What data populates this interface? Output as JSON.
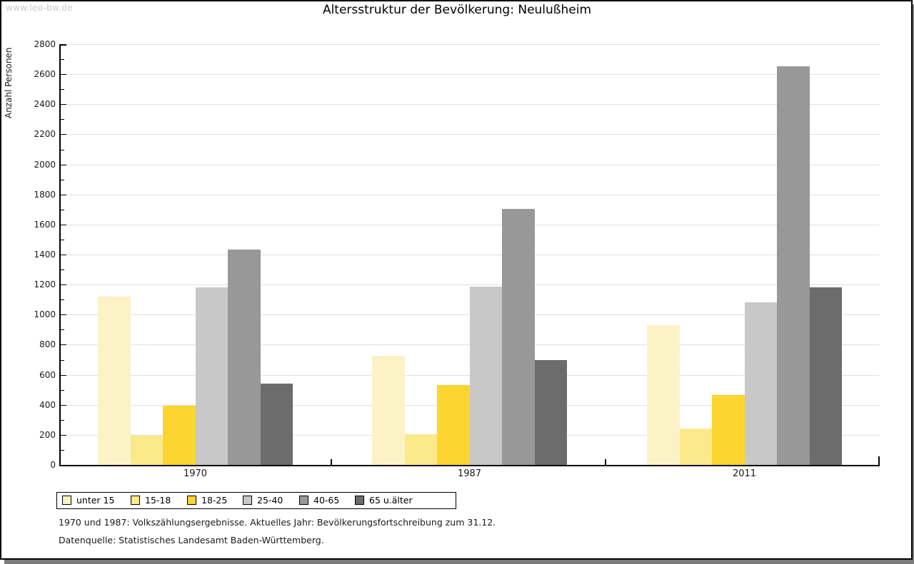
{
  "watermark": "www.leo-bw.de",
  "title": "Altersstruktur der Bevölkerung: Neulußheim",
  "y_axis_title": "Anzahl Personen",
  "footer": {
    "line1": "1970 und 1987: Volkszählungsergebnisse. Aktuelles Jahr: Bevölkerungsfortschreibung zum 31.12.",
    "line2": "Datenquelle: Statistisches Landesamt Baden-Württemberg."
  },
  "chart_data": {
    "type": "bar",
    "title": "Altersstruktur der Bevölkerung: Neulußheim",
    "ylabel": "Anzahl Personen",
    "categories": [
      "1970",
      "1987",
      "2011"
    ],
    "series": [
      {
        "name": "unter 15",
        "color": "#FBF3C6",
        "values": [
          1120,
          725,
          930
        ]
      },
      {
        "name": "15-18",
        "color": "#FCE98A",
        "values": [
          195,
          205,
          240
        ]
      },
      {
        "name": "18-25",
        "color": "#FCD530",
        "values": [
          395,
          530,
          465
        ]
      },
      {
        "name": "25-40",
        "color": "#C8C8C8",
        "values": [
          1180,
          1185,
          1080
        ]
      },
      {
        "name": "40-65",
        "color": "#989898",
        "values": [
          1435,
          1705,
          2655
        ]
      },
      {
        "name": "65 u.älter",
        "color": "#6C6C6C",
        "values": [
          540,
          700,
          1180
        ]
      }
    ],
    "ylim": [
      0,
      2800
    ],
    "ytick_step": 200,
    "minor_tick_step": 100,
    "grid": true,
    "legend_position": "bottom-left"
  }
}
